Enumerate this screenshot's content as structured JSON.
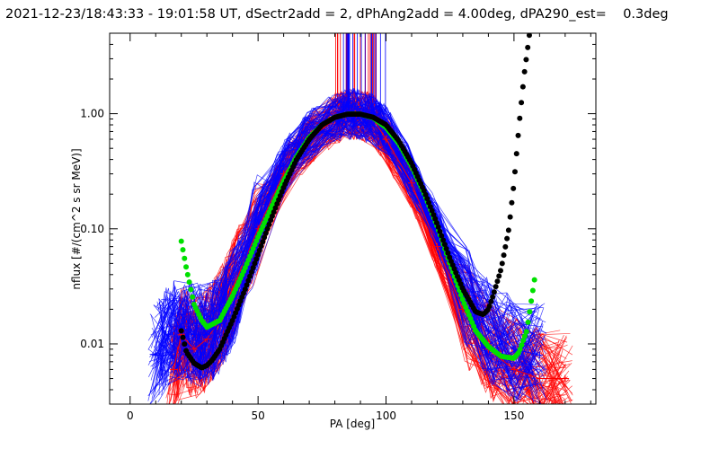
{
  "chart_data": {
    "type": "line",
    "title": "2021-12-23/18:43:33 - 19:01:58 UT, dSectr2add = 2, dPhAng2add = 4.00deg, dPA290_est=    0.3deg",
    "xlabel": "PA [deg]",
    "ylabel": "nflux [#/(cm^2 s sr MeV)]",
    "xlim": [
      -8,
      182
    ],
    "ylim": [
      0.003,
      5.0
    ],
    "yscale": "log",
    "x_ticks": [
      {
        "value": 0,
        "label": "0"
      },
      {
        "value": 50,
        "label": "50"
      },
      {
        "value": 100,
        "label": "100"
      },
      {
        "value": 150,
        "label": "150"
      }
    ],
    "y_ticks": [
      {
        "value": 0.01,
        "label": "0.01"
      },
      {
        "value": 0.1,
        "label": "0.10"
      },
      {
        "value": 1.0,
        "label": "1.00"
      }
    ],
    "series": [
      {
        "style": "cross-lines",
        "color": "#ff0000",
        "x": [
          17,
          20,
          25,
          30,
          35,
          40,
          50,
          60,
          70,
          80,
          85,
          90,
          95,
          100,
          110,
          120,
          130,
          140,
          150,
          160,
          170
        ],
        "y": [
          0.006,
          0.012,
          0.009,
          0.011,
          0.016,
          0.03,
          0.1,
          0.3,
          0.6,
          0.9,
          1.0,
          0.98,
          0.9,
          0.6,
          0.25,
          0.07,
          0.02,
          0.009,
          0.006,
          0.005,
          0.005
        ]
      },
      {
        "style": "cross-lines",
        "color": "#0000ff",
        "x": [
          10,
          15,
          20,
          25,
          30,
          35,
          40,
          50,
          60,
          70,
          80,
          85,
          90,
          95,
          100,
          110,
          120,
          130,
          140,
          150,
          160
        ],
        "y": [
          0.008,
          0.012,
          0.014,
          0.012,
          0.012,
          0.015,
          0.025,
          0.12,
          0.35,
          0.65,
          0.92,
          1.0,
          0.98,
          0.9,
          0.7,
          0.3,
          0.1,
          0.03,
          0.013,
          0.009,
          0.008
        ]
      },
      {
        "style": "dotted-fit",
        "color": "#00e000",
        "x": [
          20,
          22,
          25,
          28,
          30,
          35,
          40,
          45,
          50,
          55,
          60,
          65,
          70,
          75,
          80,
          85,
          90,
          95,
          100,
          105,
          110,
          115,
          120,
          125,
          130,
          135,
          140,
          145,
          150,
          152,
          155,
          158
        ],
        "y": [
          0.078,
          0.045,
          0.022,
          0.016,
          0.014,
          0.016,
          0.026,
          0.046,
          0.085,
          0.15,
          0.26,
          0.42,
          0.62,
          0.8,
          0.93,
          0.99,
          0.99,
          0.92,
          0.76,
          0.55,
          0.35,
          0.2,
          0.105,
          0.05,
          0.024,
          0.013,
          0.0095,
          0.0078,
          0.0075,
          0.0085,
          0.013,
          0.036
        ]
      },
      {
        "style": "dotted-fit",
        "color": "#000000",
        "x": [
          20,
          22,
          25,
          28,
          30,
          32,
          35,
          40,
          45,
          50,
          55,
          60,
          65,
          70,
          75,
          80,
          85,
          90,
          95,
          100,
          105,
          110,
          115,
          120,
          125,
          130,
          135,
          138,
          140,
          142,
          145,
          148,
          150,
          152,
          154,
          156
        ],
        "y": [
          0.013,
          0.0085,
          0.0068,
          0.0062,
          0.0065,
          0.0072,
          0.009,
          0.016,
          0.03,
          0.06,
          0.12,
          0.23,
          0.4,
          0.6,
          0.8,
          0.93,
          0.99,
          0.99,
          0.93,
          0.8,
          0.58,
          0.37,
          0.21,
          0.11,
          0.055,
          0.03,
          0.019,
          0.018,
          0.02,
          0.027,
          0.045,
          0.1,
          0.25,
          0.8,
          2.2,
          4.8
        ]
      }
    ]
  }
}
